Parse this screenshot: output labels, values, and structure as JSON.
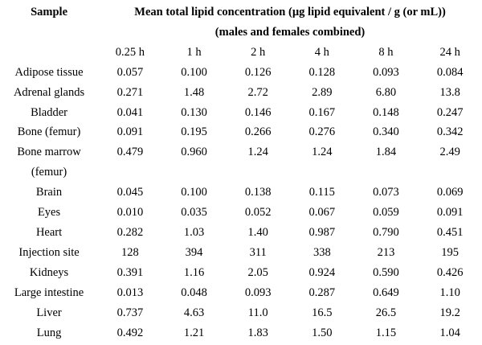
{
  "page": {
    "background_color": "#ffffff",
    "text_color": "#000000"
  },
  "table": {
    "sample_header": "Sample",
    "title_line1": "Mean total lipid concentration (µg lipid equivalent / g (or mL))",
    "title_line2": "(males and females combined)",
    "time_headers": [
      "0.25 h",
      "1 h",
      "2 h",
      "4 h",
      "8 h",
      "24 h"
    ],
    "rows": [
      {
        "label": "Adipose tissue",
        "values": [
          "0.057",
          "0.100",
          "0.126",
          "0.128",
          "0.093",
          "0.084"
        ]
      },
      {
        "label": "Adrenal glands",
        "values": [
          "0.271",
          "1.48",
          "2.72",
          "2.89",
          "6.80",
          "13.8"
        ]
      },
      {
        "label": "Bladder",
        "values": [
          "0.041",
          "0.130",
          "0.146",
          "0.167",
          "0.148",
          "0.247"
        ]
      },
      {
        "label": "Bone (femur)",
        "values": [
          "0.091",
          "0.195",
          "0.266",
          "0.276",
          "0.340",
          "0.342"
        ]
      },
      {
        "label": "Bone marrow",
        "label_line2": "(femur)",
        "values": [
          "0.479",
          "0.960",
          "1.24",
          "1.24",
          "1.84",
          "2.49"
        ]
      },
      {
        "label": "Brain",
        "values": [
          "0.045",
          "0.100",
          "0.138",
          "0.115",
          "0.073",
          "0.069"
        ]
      },
      {
        "label": "Eyes",
        "values": [
          "0.010",
          "0.035",
          "0.052",
          "0.067",
          "0.059",
          "0.091"
        ]
      },
      {
        "label": "Heart",
        "values": [
          "0.282",
          "1.03",
          "1.40",
          "0.987",
          "0.790",
          "0.451"
        ]
      },
      {
        "label": "Injection site",
        "values": [
          "128",
          "394",
          "311",
          "338",
          "213",
          "195"
        ]
      },
      {
        "label": "Kidneys",
        "values": [
          "0.391",
          "1.16",
          "2.05",
          "0.924",
          "0.590",
          "0.426"
        ]
      },
      {
        "label": "Large intestine",
        "values": [
          "0.013",
          "0.048",
          "0.093",
          "0.287",
          "0.649",
          "1.10"
        ]
      },
      {
        "label": "Liver",
        "values": [
          "0.737",
          "4.63",
          "11.0",
          "16.5",
          "26.5",
          "19.2"
        ]
      },
      {
        "label": "Lung",
        "values": [
          "0.492",
          "1.21",
          "1.83",
          "1.50",
          "1.15",
          "1.04"
        ]
      }
    ]
  },
  "chart_data": {
    "type": "table",
    "title": "Mean total lipid concentration (µg lipid equivalent / g (or mL)) (males and females combined)",
    "columns": [
      "Sample",
      "0.25 h",
      "1 h",
      "2 h",
      "4 h",
      "8 h",
      "24 h"
    ],
    "rows": [
      [
        "Adipose tissue",
        0.057,
        0.1,
        0.126,
        0.128,
        0.093,
        0.084
      ],
      [
        "Adrenal glands",
        0.271,
        1.48,
        2.72,
        2.89,
        6.8,
        13.8
      ],
      [
        "Bladder",
        0.041,
        0.13,
        0.146,
        0.167,
        0.148,
        0.247
      ],
      [
        "Bone (femur)",
        0.091,
        0.195,
        0.266,
        0.276,
        0.34,
        0.342
      ],
      [
        "Bone marrow (femur)",
        0.479,
        0.96,
        1.24,
        1.24,
        1.84,
        2.49
      ],
      [
        "Brain",
        0.045,
        0.1,
        0.138,
        0.115,
        0.073,
        0.069
      ],
      [
        "Eyes",
        0.01,
        0.035,
        0.052,
        0.067,
        0.059,
        0.091
      ],
      [
        "Heart",
        0.282,
        1.03,
        1.4,
        0.987,
        0.79,
        0.451
      ],
      [
        "Injection site",
        128,
        394,
        311,
        338,
        213,
        195
      ],
      [
        "Kidneys",
        0.391,
        1.16,
        2.05,
        0.924,
        0.59,
        0.426
      ],
      [
        "Large intestine",
        0.013,
        0.048,
        0.093,
        0.287,
        0.649,
        1.1
      ],
      [
        "Liver",
        0.737,
        4.63,
        11.0,
        16.5,
        26.5,
        19.2
      ],
      [
        "Lung",
        0.492,
        1.21,
        1.83,
        1.5,
        1.15,
        1.04
      ]
    ]
  }
}
